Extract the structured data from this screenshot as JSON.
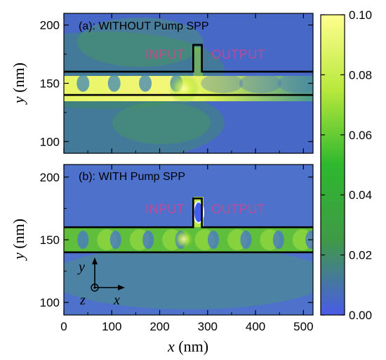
{
  "chart_data": [
    {
      "type": "heatmap",
      "panel_label": "(a): WITHOUT Pump SPP",
      "x_range": [
        0,
        520
      ],
      "y_range": [
        90,
        210
      ],
      "y_ticks": [
        100,
        150,
        200
      ],
      "ylabel": "y (nm)",
      "waveguide": {
        "y_bottom": 140,
        "y_top": 160,
        "stub_x": [
          270,
          288
        ],
        "stub_top": 183
      },
      "annotations": [
        {
          "text": "INPUT",
          "x": 170,
          "y": 171
        },
        {
          "text": "OUTPUT",
          "x": 308,
          "y": 171
        }
      ]
    },
    {
      "type": "heatmap",
      "panel_label": "(b): WITH Pump SPP",
      "x_range": [
        0,
        520
      ],
      "y_range": [
        90,
        210
      ],
      "x_ticks": [
        0,
        100,
        200,
        300,
        400,
        500
      ],
      "y_ticks": [
        100,
        150,
        200
      ],
      "xlabel": "x (nm)",
      "ylabel": "y (nm)",
      "waveguide": {
        "y_bottom": 140,
        "y_top": 160,
        "stub_x": [
          270,
          288
        ],
        "stub_top": 183
      },
      "annotations": [
        {
          "text": "INPUT",
          "x": 170,
          "y": 171
        },
        {
          "text": "OUTPUT",
          "x": 308,
          "y": 171
        }
      ]
    }
  ],
  "colorbar": {
    "range": [
      0.0,
      0.1
    ],
    "tick_labels": [
      "0.10",
      "0.08",
      "0.06",
      "0.04",
      "0.02",
      "0.00"
    ],
    "tick_values": [
      0.1,
      0.08,
      0.06,
      0.04,
      0.02,
      0.0
    ],
    "colors": [
      "#4a5be8",
      "#3f9a46",
      "#2eb82e",
      "#b8e83c",
      "#ffff8f"
    ]
  },
  "axes_indicator": {
    "y": "y",
    "z": "z",
    "x": "x"
  }
}
